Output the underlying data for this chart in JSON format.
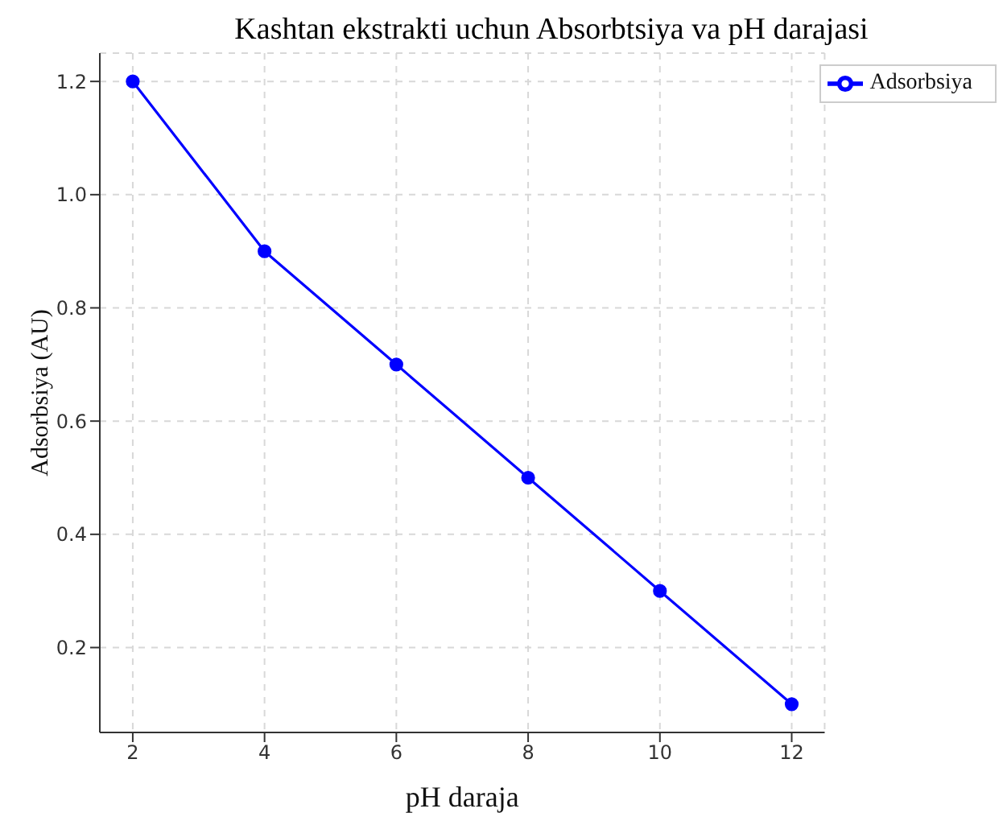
{
  "chart_data": {
    "type": "line",
    "title": "Kashtan ekstrakti uchun Absorbtsiya va pH darajasi",
    "xlabel": "pH daraja",
    "ylabel": "Adsorbsiya (AU)",
    "x": [
      2,
      4,
      6,
      8,
      10,
      12
    ],
    "series": [
      {
        "name": "Adsorbsiya",
        "color": "#0000ff",
        "values": [
          1.2,
          0.9,
          0.7,
          0.5,
          0.3,
          0.1
        ]
      }
    ],
    "xlim": [
      1.5,
      12.5
    ],
    "xticks": [
      2,
      4,
      6,
      8,
      10,
      12
    ],
    "ylim": [
      0.05,
      1.25
    ],
    "yticks": [
      0.2,
      0.4,
      0.6,
      0.8,
      {
        "value": 1,
        "label": "1.0"
      },
      1.2
    ],
    "grid": true,
    "legend": "top right",
    "marker": "circle",
    "line_style": "solid"
  }
}
